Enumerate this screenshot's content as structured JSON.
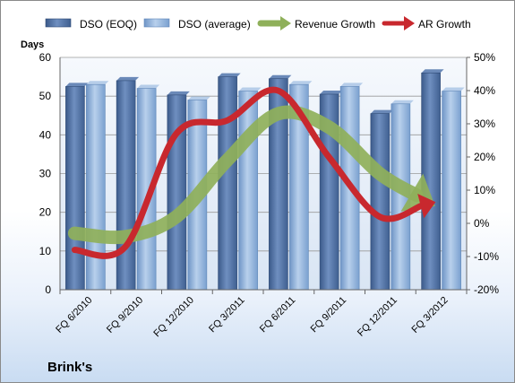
{
  "company": "Brink's",
  "chart_data": {
    "type": "bar",
    "categories": [
      "FQ 6/2010",
      "FQ 9/2010",
      "FQ 12/2010",
      "FQ 3/2011",
      "FQ 6/2011",
      "FQ 9/2011",
      "FQ 12/2011",
      "FQ 3/2012"
    ],
    "ylabel": "Days",
    "ylim": [
      0,
      60
    ],
    "yticks": [
      "0",
      "10",
      "20",
      "30",
      "40",
      "50",
      "60"
    ],
    "y2lim": [
      -0.2,
      0.5
    ],
    "y2ticks": [
      "-20%",
      "-10%",
      "0%",
      "10%",
      "20%",
      "30%",
      "40%",
      "50%"
    ],
    "grid": true,
    "legend_position": "top",
    "series": [
      {
        "name": "DSO (EOQ)",
        "type": "bar",
        "axis": "left",
        "color": "#4f6fa0",
        "values": [
          52.5,
          54,
          50.3,
          55,
          54.5,
          50.5,
          45.5,
          56
        ]
      },
      {
        "name": "DSO (average)",
        "type": "bar",
        "axis": "left",
        "color": "#8fb2d9",
        "values": [
          53,
          52,
          49,
          51.3,
          53,
          52.5,
          48,
          51.3
        ]
      },
      {
        "name": "Revenue Growth",
        "type": "line",
        "axis": "right",
        "color": "#8fb05a",
        "values": [
          -0.03,
          -0.04,
          0.02,
          0.19,
          0.33,
          0.29,
          0.15,
          0.06
        ]
      },
      {
        "name": "AR Growth",
        "type": "line",
        "axis": "right",
        "color": "#c8282e",
        "values": [
          -0.08,
          -0.07,
          0.27,
          0.31,
          0.4,
          0.2,
          0.02,
          0.06
        ]
      }
    ]
  }
}
